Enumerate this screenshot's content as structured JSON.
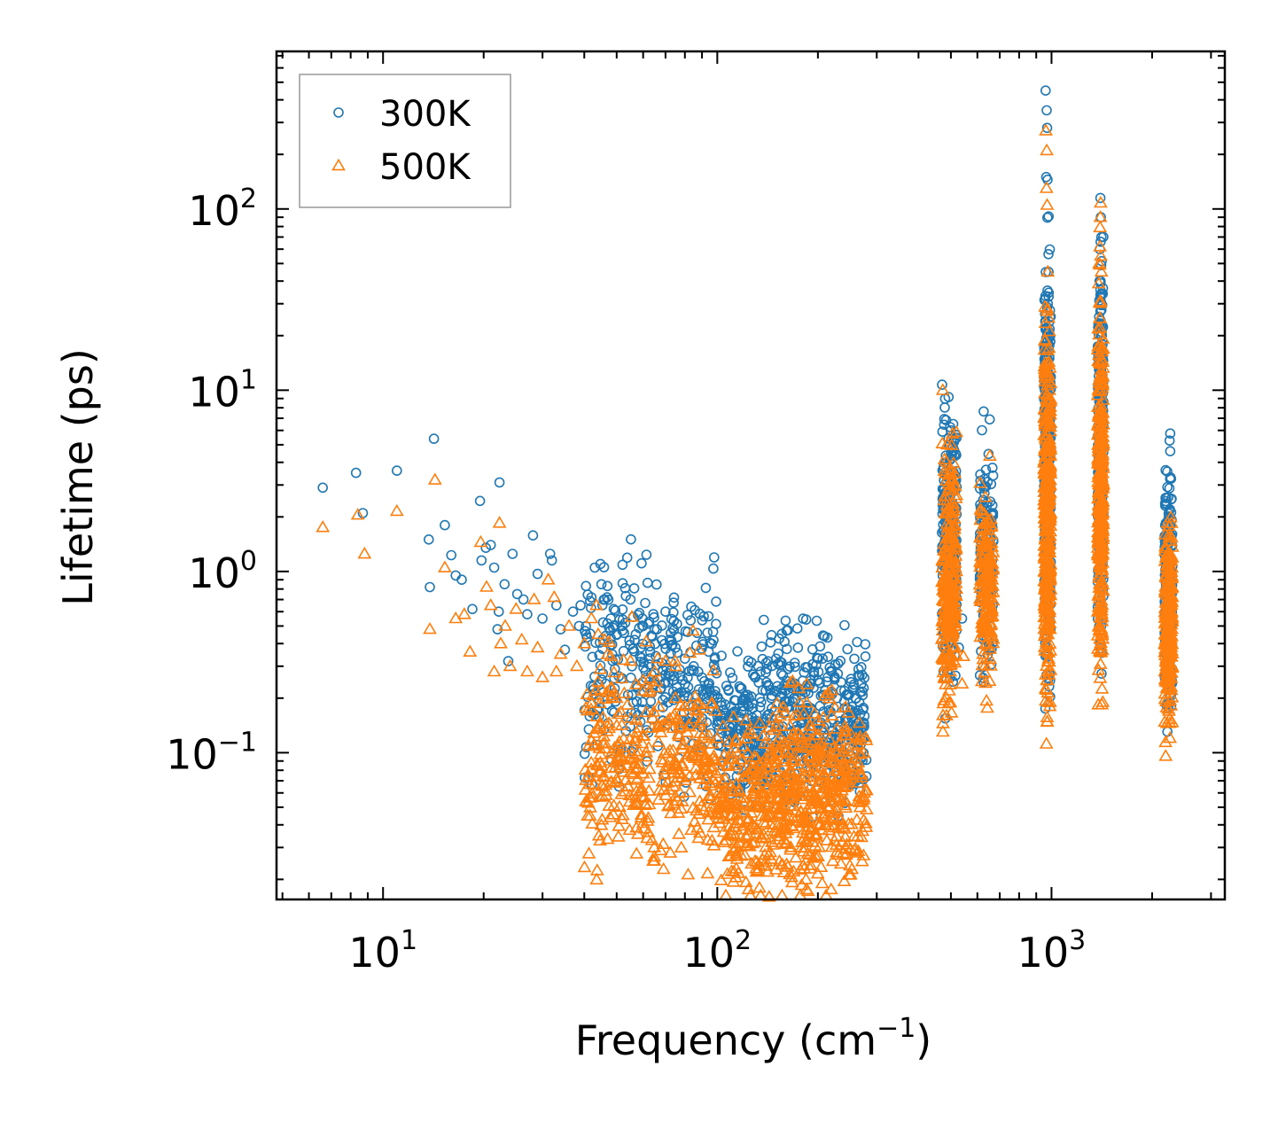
{
  "chart_data": {
    "type": "scatter",
    "title": "",
    "xlabel": "Frequency (cm",
    "xlabel_sup": "−1",
    "xlabel_suffix": ")",
    "ylabel": "Lifetime (ps)",
    "xscale": "log",
    "yscale": "log",
    "xlim": [
      4.8,
      3300
    ],
    "ylim": [
      0.0155,
      740
    ],
    "x_ticks": [
      {
        "value": 10,
        "base": "10",
        "exp": "1"
      },
      {
        "value": 100,
        "base": "10",
        "exp": "2"
      },
      {
        "value": 1000,
        "base": "10",
        "exp": "3"
      }
    ],
    "y_ticks": [
      {
        "value": 0.1,
        "base": "10",
        "exp": "−1"
      },
      {
        "value": 1,
        "base": "10",
        "exp": "0"
      },
      {
        "value": 10,
        "base": "10",
        "exp": "1"
      },
      {
        "value": 100,
        "base": "10",
        "exp": "2"
      }
    ],
    "legend": {
      "position": "top-left",
      "entries": [
        {
          "label": "300K",
          "marker": "circle",
          "color": "#1f77b4"
        },
        {
          "label": "500K",
          "marker": "triangle",
          "color": "#ff7f0e"
        }
      ]
    },
    "series": [
      {
        "name": "300K",
        "marker": "circle",
        "color": "#1f77b4",
        "points": [
          [
            6.6,
            2.9
          ],
          [
            8.3,
            3.5
          ],
          [
            8.7,
            2.1
          ],
          [
            11,
            3.6
          ],
          [
            14.2,
            5.4
          ],
          [
            13.7,
            1.5
          ],
          [
            13.8,
            0.82
          ],
          [
            15.3,
            1.8
          ],
          [
            16,
            1.23
          ],
          [
            16.5,
            0.95
          ],
          [
            17.2,
            0.9
          ],
          [
            18.5,
            0.62
          ],
          [
            19.5,
            2.45
          ],
          [
            19.7,
            1.15
          ],
          [
            20.3,
            1.35
          ],
          [
            21,
            1.4
          ],
          [
            21.5,
            1.05
          ],
          [
            22.3,
            3.1
          ],
          [
            22.2,
            0.6
          ],
          [
            22,
            0.48
          ],
          [
            23.1,
            0.85
          ],
          [
            23.7,
            0.32
          ],
          [
            24.4,
            1.25
          ],
          [
            25.2,
            0.75
          ],
          [
            26.3,
            0.7
          ],
          [
            27,
            0.58
          ],
          [
            28.1,
            1.58
          ],
          [
            29,
            0.97
          ],
          [
            30,
            0.55
          ],
          [
            31.6,
            1.25
          ],
          [
            32,
            1.15
          ],
          [
            33,
            0.65
          ],
          [
            34,
            0.48
          ],
          [
            35,
            0.37
          ],
          [
            37,
            0.6
          ],
          [
            38.6,
            0.5
          ],
          [
            39,
            0.65
          ],
          [
            40.5,
            0.45
          ],
          [
            42,
            0.72
          ],
          [
            43,
            1.05
          ],
          [
            44.7,
            1.1
          ],
          [
            45,
            0.85
          ],
          [
            46,
            0.7
          ],
          [
            48,
            0.55
          ],
          [
            49,
            0.62
          ],
          [
            50,
            0.45
          ],
          [
            52,
            0.5
          ],
          [
            55,
            0.7
          ],
          [
            57,
            0.45
          ],
          [
            59,
            0.38
          ],
          [
            60,
            0.5
          ],
          [
            63,
            0.36
          ],
          [
            66,
            0.48
          ],
          [
            70,
            0.6
          ],
          [
            72,
            0.42
          ],
          [
            75,
            0.38
          ],
          [
            80,
            0.33
          ],
          [
            85,
            0.3
          ],
          [
            90,
            0.26
          ],
          [
            95,
            0.22
          ],
          [
            100,
            0.2
          ],
          [
            110,
            0.18
          ],
          [
            120,
            0.17
          ],
          [
            128,
            0.27
          ],
          [
            130,
            0.26
          ],
          [
            145,
            0.2
          ],
          [
            150,
            0.33
          ],
          [
            152,
            0.31
          ],
          [
            160,
            0.22
          ],
          [
            170,
            0.2
          ],
          [
            180,
            0.21
          ],
          [
            190,
            0.24
          ],
          [
            200,
            0.25
          ],
          [
            210,
            0.22
          ],
          [
            220,
            0.28
          ],
          [
            230,
            0.31
          ],
          [
            240,
            0.22
          ],
          [
            260,
            0.2
          ],
          [
            270,
            0.24
          ],
          [
            275,
            0.12
          ],
          [
            500,
            6.0
          ],
          [
            495,
            5.0
          ],
          [
            505,
            4.8
          ],
          [
            500,
            0.55
          ],
          [
            540,
            0.55
          ],
          [
            528,
            0.38
          ],
          [
            630,
            2.7
          ],
          [
            645,
            1.7
          ],
          [
            640,
            2.3
          ],
          [
            960,
            450
          ],
          [
            967,
            350
          ],
          [
            970,
            280
          ],
          [
            964,
            150
          ],
          [
            973,
            145
          ],
          [
            980,
            45
          ],
          [
            975,
            30
          ],
          [
            985,
            15
          ],
          [
            990,
            0.25
          ],
          [
            990,
            2.2
          ],
          [
            1400,
            115
          ],
          [
            1405,
            90
          ],
          [
            1410,
            70
          ],
          [
            1395,
            60
          ],
          [
            1402,
            40
          ],
          [
            1415,
            20
          ],
          [
            1400,
            10
          ],
          [
            1408,
            0.5
          ],
          [
            2250,
            2.0
          ],
          [
            2260,
            1.8
          ],
          [
            2270,
            1.2
          ],
          [
            2280,
            0.18
          ],
          [
            2245,
            0.25
          ]
        ],
        "clusters": [
          {
            "x": [
              40,
              100
            ],
            "y_center": 0.28,
            "y_spread": 0.55,
            "n": 320
          },
          {
            "x": [
              100,
              135
            ],
            "y_center": 0.13,
            "y_spread": 0.4,
            "n": 160
          },
          {
            "x": [
              135,
              280
            ],
            "y_center": 0.15,
            "y_spread": 0.45,
            "n": 420
          },
          {
            "x": [
              470,
              520
            ],
            "y_center": 1.5,
            "y_spread": 0.75,
            "n": 260
          },
          {
            "x": [
              610,
              670
            ],
            "y_center": 1.2,
            "y_spread": 0.55,
            "n": 160
          },
          {
            "x": [
              950,
              995
            ],
            "y_center": 3.5,
            "y_spread": 1.0,
            "n": 380
          },
          {
            "x": [
              1375,
              1430
            ],
            "y_center": 5.0,
            "y_spread": 1.0,
            "n": 300
          },
          {
            "x": [
              2180,
              2300
            ],
            "y_center": 0.8,
            "y_spread": 0.6,
            "n": 240
          }
        ]
      },
      {
        "name": "500K",
        "marker": "triangle",
        "color": "#ff7f0e",
        "points": [
          [
            6.6,
            1.75
          ],
          [
            8.4,
            2.05
          ],
          [
            8.8,
            1.25
          ],
          [
            11,
            2.15
          ],
          [
            14.3,
            3.2
          ],
          [
            13.8,
            0.48
          ],
          [
            15.3,
            1.05
          ],
          [
            16.5,
            0.55
          ],
          [
            17.5,
            0.58
          ],
          [
            18.2,
            0.36
          ],
          [
            19.6,
            1.45
          ],
          [
            20.4,
            0.82
          ],
          [
            21,
            0.65
          ],
          [
            21.5,
            0.28
          ],
          [
            22.3,
            1.85
          ],
          [
            22.5,
            0.4
          ],
          [
            23.2,
            0.5
          ],
          [
            24,
            0.3
          ],
          [
            25,
            0.62
          ],
          [
            26,
            0.42
          ],
          [
            27,
            0.28
          ],
          [
            28.3,
            0.7
          ],
          [
            29,
            0.38
          ],
          [
            30,
            0.26
          ],
          [
            31.2,
            0.9
          ],
          [
            32.5,
            0.72
          ],
          [
            33,
            0.28
          ],
          [
            34,
            0.35
          ],
          [
            36,
            0.5
          ],
          [
            38,
            0.3
          ],
          [
            40,
            0.4
          ],
          [
            42,
            0.55
          ],
          [
            43.5,
            0.65
          ],
          [
            44,
            0.45
          ],
          [
            46,
            0.42
          ],
          [
            48,
            0.34
          ],
          [
            50,
            0.2
          ],
          [
            55,
            0.32
          ],
          [
            60,
            0.25
          ],
          [
            65,
            0.28
          ],
          [
            70,
            0.32
          ],
          [
            75,
            0.2
          ],
          [
            80,
            0.18
          ],
          [
            90,
            0.15
          ],
          [
            100,
            0.12
          ],
          [
            110,
            0.1
          ],
          [
            120,
            0.08
          ],
          [
            130,
            0.05
          ],
          [
            140,
            0.025
          ],
          [
            143,
            0.016
          ],
          [
            150,
            0.14
          ],
          [
            160,
            0.1
          ],
          [
            170,
            0.12
          ],
          [
            190,
            0.14
          ],
          [
            200,
            0.15
          ],
          [
            220,
            0.16
          ],
          [
            240,
            0.13
          ],
          [
            260,
            0.12
          ],
          [
            275,
            0.06
          ],
          [
            500,
            3.5
          ],
          [
            505,
            3.2
          ],
          [
            495,
            2.8
          ],
          [
            545,
            0.34
          ],
          [
            540,
            0.24
          ],
          [
            640,
            1.75
          ],
          [
            650,
            1.1
          ],
          [
            962,
            270
          ],
          [
            968,
            210
          ],
          [
            966,
            130
          ],
          [
            970,
            105
          ],
          [
            975,
            45
          ],
          [
            980,
            25
          ],
          [
            985,
            10
          ],
          [
            990,
            0.19
          ],
          [
            988,
            0.18
          ],
          [
            1403,
            108
          ],
          [
            1400,
            90
          ],
          [
            1405,
            55
          ],
          [
            1410,
            45
          ],
          [
            1395,
            25
          ],
          [
            1400,
            12
          ],
          [
            1410,
            0.48
          ],
          [
            2250,
            1.2
          ],
          [
            2260,
            1.0
          ],
          [
            2270,
            0.6
          ],
          [
            2280,
            0.23
          ]
        ],
        "clusters": [
          {
            "x": [
              40,
              100
            ],
            "y_center": 0.085,
            "y_spread": 0.55,
            "n": 380
          },
          {
            "x": [
              100,
              140
            ],
            "y_center": 0.05,
            "y_spread": 0.45,
            "n": 200
          },
          {
            "x": [
              140,
              280
            ],
            "y_center": 0.06,
            "y_spread": 0.5,
            "n": 480
          },
          {
            "x": [
              470,
              520
            ],
            "y_center": 0.95,
            "y_spread": 0.7,
            "n": 260
          },
          {
            "x": [
              610,
              670
            ],
            "y_center": 0.75,
            "y_spread": 0.5,
            "n": 160
          },
          {
            "x": [
              950,
              995
            ],
            "y_center": 2.0,
            "y_spread": 1.0,
            "n": 380
          },
          {
            "x": [
              1375,
              1430
            ],
            "y_center": 3.0,
            "y_spread": 1.0,
            "n": 300
          },
          {
            "x": [
              2180,
              2300
            ],
            "y_center": 0.5,
            "y_spread": 0.55,
            "n": 240
          }
        ]
      }
    ]
  }
}
